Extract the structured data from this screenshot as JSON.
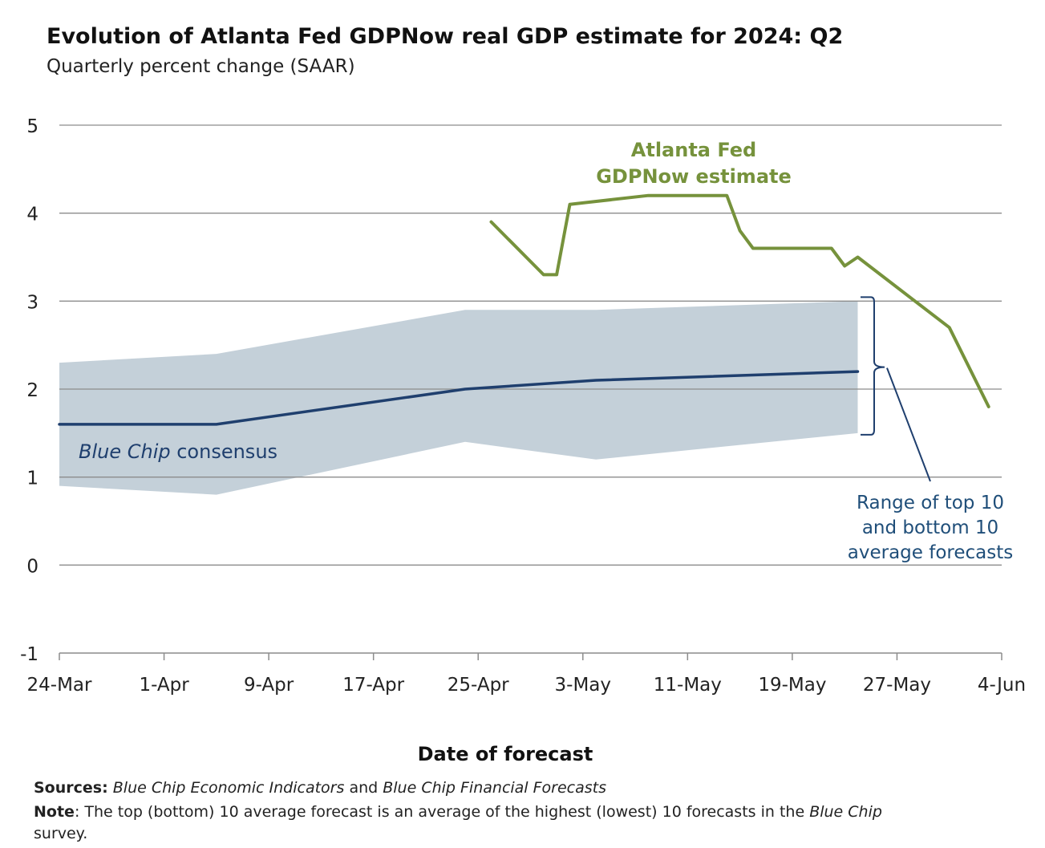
{
  "title": "Evolution of Atlanta Fed GDPNow real GDP estimate for 2024: Q2",
  "subtitle": "Quarterly percent change (SAAR)",
  "footer": {
    "sources_label": "Sources:",
    "sources_italic_1": "Blue Chip Economic Indicators",
    "sources_and": " and ",
    "sources_italic_2": "Blue Chip Financial Forecasts",
    "note_label": "Note",
    "note_text_1": ": The top (bottom) 10 average forecast is an average of the highest (lowest) 10 forecasts in the ",
    "note_italic": "Blue Chip",
    "note_text_2": " survey."
  },
  "chart_data": {
    "type": "line",
    "xlabel": "Date of forecast",
    "ylabel": "",
    "xlim": [
      "2024-03-24",
      "2024-06-04"
    ],
    "ylim": [
      -1,
      5
    ],
    "y_ticks": [
      -1,
      0,
      1,
      2,
      3,
      4,
      5
    ],
    "x_ticks": [
      "2024-03-24",
      "2024-04-01",
      "2024-04-09",
      "2024-04-17",
      "2024-04-25",
      "2024-05-03",
      "2024-05-11",
      "2024-05-19",
      "2024-05-27",
      "2024-06-04"
    ],
    "x_tick_labels": [
      "24-Mar",
      "1-Apr",
      "9-Apr",
      "17-Apr",
      "25-Apr",
      "3-May",
      "11-May",
      "19-May",
      "27-May",
      "4-Jun"
    ],
    "grid": true,
    "series": [
      {
        "name": "Atlanta Fed GDPNow estimate",
        "color": "#76923c",
        "x": [
          "2024-04-26",
          "2024-04-30",
          "2024-05-01",
          "2024-05-02",
          "2024-05-08",
          "2024-05-14",
          "2024-05-15",
          "2024-05-16",
          "2024-05-22",
          "2024-05-23",
          "2024-05-24",
          "2024-05-31",
          "2024-06-03"
        ],
        "y": [
          3.9,
          3.3,
          3.3,
          4.1,
          4.2,
          4.2,
          3.8,
          3.6,
          3.6,
          3.4,
          3.5,
          2.7,
          1.8
        ]
      },
      {
        "name": "Blue Chip consensus",
        "color": "#1f3f6e",
        "x": [
          "2024-03-24",
          "2024-04-05",
          "2024-04-24",
          "2024-05-04",
          "2024-05-24"
        ],
        "y": [
          1.6,
          1.6,
          2.0,
          2.1,
          2.2
        ]
      }
    ],
    "range_band": {
      "name": "Range of top 10 and bottom 10 average forecasts",
      "color": "#c4d0d9",
      "x": [
        "2024-03-24",
        "2024-04-05",
        "2024-04-24",
        "2024-05-04",
        "2024-05-24"
      ],
      "upper": [
        2.3,
        2.4,
        2.9,
        2.9,
        3.0
      ],
      "lower": [
        0.9,
        0.8,
        1.4,
        1.2,
        1.5
      ]
    },
    "annotations": {
      "gdpnow_line1": "Atlanta Fed",
      "gdpnow_line2": "GDPNow estimate",
      "consensus_italic": "Blue Chip",
      "consensus_rest": " consensus",
      "range_line1": "Range of top 10",
      "range_line2": "and bottom 10",
      "range_line3": "average forecasts"
    }
  }
}
